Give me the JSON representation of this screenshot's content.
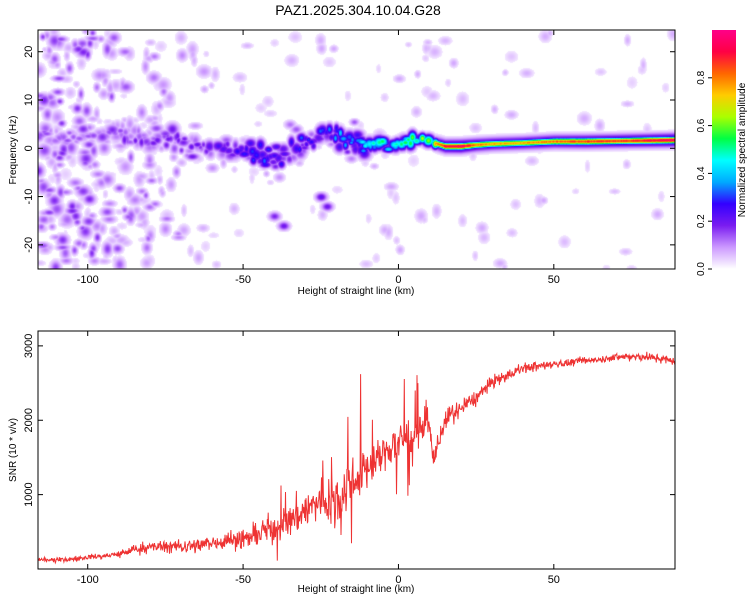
{
  "chart_data": [
    {
      "type": "heatmap",
      "title": "PAZ1.2025.304.10.04.G28",
      "xlabel": "Height of straight line (km)",
      "ylabel": "Frequency (Hz)",
      "xlim": [
        -116,
        89
      ],
      "ylim": [
        -25,
        24.5
      ],
      "xticks": [
        -100,
        -50,
        0,
        50
      ],
      "yticks": [
        -20,
        -10,
        0,
        10,
        20
      ],
      "colorbar": {
        "label": "Normalized spectral amplitude",
        "range": [
          0,
          1
        ],
        "ticks": [
          0.0,
          0.2,
          0.4,
          0.6,
          0.8
        ],
        "tick_labels": [
          "0.0",
          "0.2",
          "0.4",
          "0.6",
          "0.8"
        ],
        "colors": [
          "#ffffff",
          "#cc99ff",
          "#7a1cf0",
          "#3300ff",
          "#00aaff",
          "#00ffff",
          "#00ff44",
          "#aaff00",
          "#ffcc00",
          "#ff6600",
          "#ff0044",
          "#ff0088"
        ]
      },
      "ridge": {
        "x": [
          -100,
          -90,
          -80,
          -70,
          -60,
          -50,
          -45,
          -40,
          -35,
          -30,
          -25,
          -20,
          -15,
          -10,
          -5,
          0,
          5,
          10,
          15,
          20,
          25,
          30,
          40,
          50,
          60,
          70,
          80,
          89
        ],
        "freq": [
          2.5,
          3,
          2,
          1,
          0,
          0,
          -1.5,
          -2,
          -1,
          1.5,
          2.5,
          3,
          1.5,
          0.5,
          1,
          1,
          2,
          1.5,
          0.5,
          0.5,
          0.8,
          1,
          1.2,
          1.5,
          1.5,
          1.6,
          1.7,
          1.8
        ],
        "peak_amplitude": [
          0.15,
          0.2,
          0.2,
          0.22,
          0.25,
          0.3,
          0.35,
          0.3,
          0.3,
          0.35,
          0.35,
          0.4,
          0.45,
          0.5,
          0.55,
          0.6,
          0.65,
          0.75,
          0.95,
          1.0,
          0.85,
          0.8,
          0.8,
          0.85,
          0.9,
          0.9,
          0.95,
          1.0
        ]
      }
    },
    {
      "type": "line",
      "xlabel": "Height of straight line (km)",
      "ylabel": "SNR (10 * v/v)",
      "xlim": [
        -116,
        89
      ],
      "ylim": [
        0,
        3200
      ],
      "xticks": [
        -100,
        -50,
        0,
        50
      ],
      "yticks": [
        1000,
        2000,
        3000
      ],
      "series": [
        {
          "name": "SNR",
          "color": "#ee3333",
          "x": [
            -116,
            -110,
            -105,
            -100,
            -95,
            -90,
            -85,
            -80,
            -75,
            -70,
            -65,
            -60,
            -55,
            -50,
            -45,
            -40,
            -35,
            -30,
            -25,
            -20,
            -17,
            -15,
            -10,
            -5,
            0,
            5,
            10,
            11,
            12,
            15,
            20,
            25,
            30,
            35,
            40,
            50,
            60,
            70,
            80,
            89
          ],
          "y": [
            120,
            120,
            130,
            160,
            170,
            200,
            260,
            300,
            300,
            300,
            320,
            350,
            390,
            400,
            480,
            560,
            650,
            800,
            900,
            950,
            1100,
            1200,
            1350,
            1550,
            1700,
            1800,
            1900,
            1500,
            1600,
            2000,
            2150,
            2300,
            2500,
            2600,
            2700,
            2750,
            2800,
            2850,
            2850,
            2800
          ],
          "noise": [
            60,
            60,
            60,
            70,
            80,
            100,
            130,
            150,
            160,
            160,
            180,
            200,
            230,
            260,
            320,
            380,
            420,
            500,
            550,
            600,
            600,
            600,
            550,
            500,
            450,
            420,
            380,
            300,
            300,
            280,
            250,
            200,
            180,
            150,
            130,
            110,
            100,
            100,
            100,
            100
          ]
        }
      ]
    }
  ]
}
